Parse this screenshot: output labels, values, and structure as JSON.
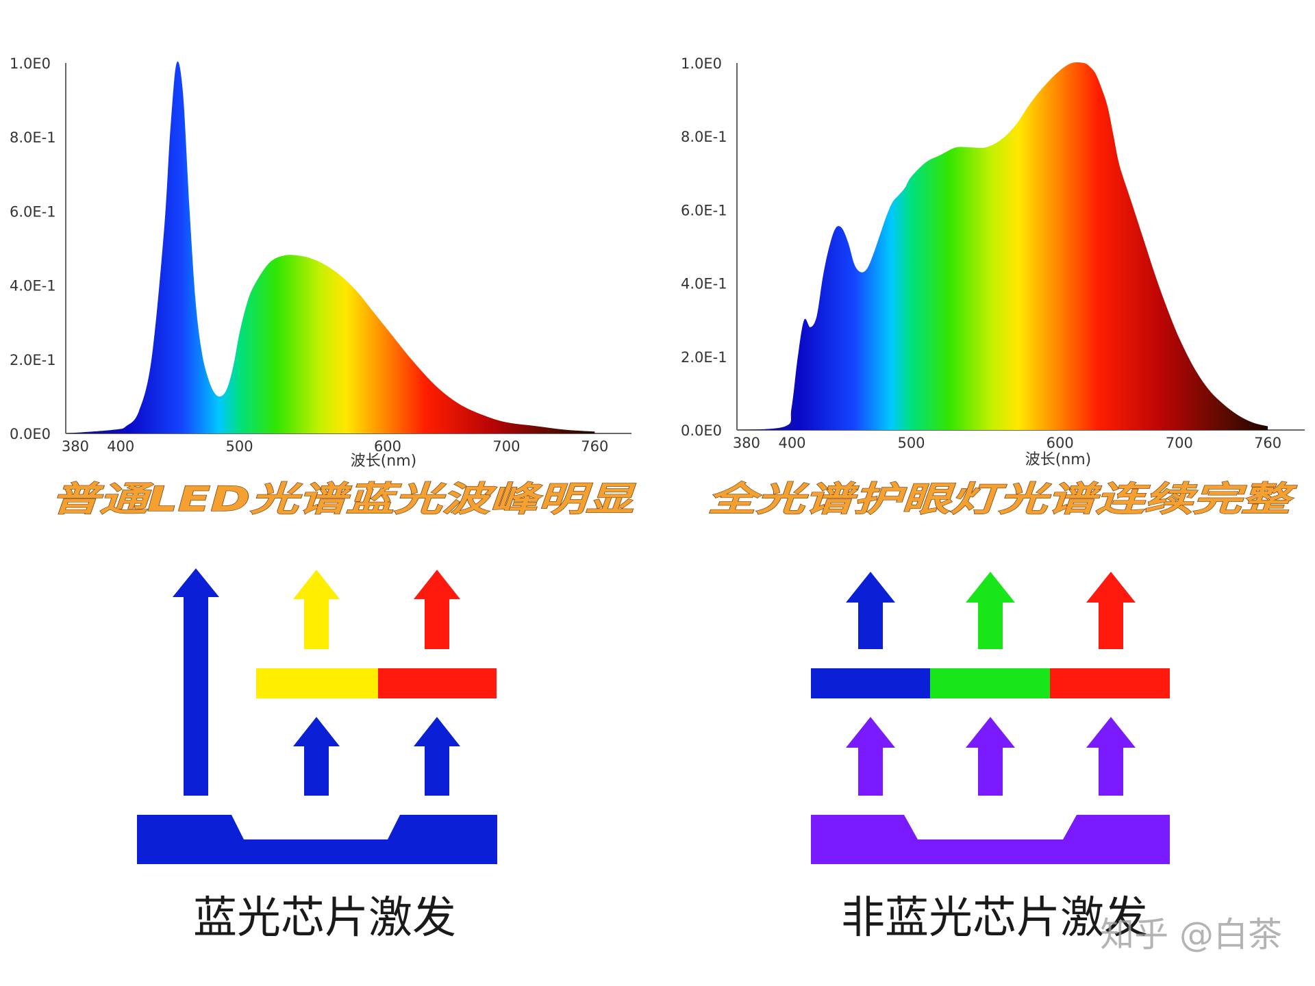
{
  "charts": {
    "left": {
      "title": "普通LED光谱蓝光波峰明显",
      "caption": "蓝光芯片激发"
    },
    "right": {
      "title": "全光谱护眼灯光谱连续完整",
      "caption": "非蓝光芯片激发"
    }
  },
  "watermark": "知乎 @白茶",
  "colors": {
    "blue": "#0a1fd6",
    "yellow": "#ffee00",
    "red": "#ff1a0d",
    "green": "#19e619",
    "violet": "#7a1aff",
    "title_fill": "#f4a132",
    "title_stroke": "#7a3d0c"
  },
  "diagrams": {
    "left": {
      "arrows": [
        "blue-long",
        "yellow",
        "red",
        "blue",
        "blue"
      ],
      "layer_colors": [
        "yellow",
        "red"
      ],
      "chip_color": "blue"
    },
    "right": {
      "arrows": [
        "blue",
        "green",
        "red",
        "violet",
        "violet",
        "violet"
      ],
      "layer_colors": [
        "blue",
        "green",
        "red"
      ],
      "chip_color": "violet"
    }
  },
  "chart_data": [
    {
      "type": "area",
      "title": "普通LED光谱蓝光波峰明显",
      "xlabel": "波长(nm)",
      "ylabel": "",
      "xlim": [
        380,
        760
      ],
      "ylim": [
        0,
        1.0
      ],
      "x_ticks": [
        380,
        400,
        500,
        600,
        700,
        760
      ],
      "x_tick_labels": [
        "380",
        "400",
        "500",
        "600",
        "700",
        "760"
      ],
      "y_ticks": [
        0,
        0.2,
        0.4,
        0.6,
        0.8,
        1.0
      ],
      "y_tick_labels": [
        "0.0E0",
        "2.0E-1",
        "4.0E-1",
        "6.0E-1",
        "8.0E-1",
        "1.0E0"
      ],
      "grid": false,
      "fill": "visible-spectrum gradient",
      "x": [
        380,
        400,
        410,
        420,
        430,
        440,
        445,
        450,
        455,
        460,
        465,
        470,
        475,
        480,
        485,
        490,
        495,
        500,
        505,
        510,
        520,
        530,
        540,
        550,
        560,
        570,
        580,
        590,
        600,
        620,
        640,
        660,
        680,
        700,
        720,
        740,
        760
      ],
      "values": [
        0.0,
        0.01,
        0.02,
        0.06,
        0.2,
        0.55,
        0.82,
        1.0,
        0.92,
        0.62,
        0.36,
        0.22,
        0.15,
        0.11,
        0.1,
        0.12,
        0.18,
        0.27,
        0.35,
        0.4,
        0.46,
        0.48,
        0.48,
        0.47,
        0.45,
        0.42,
        0.38,
        0.33,
        0.28,
        0.2,
        0.13,
        0.08,
        0.05,
        0.03,
        0.02,
        0.01,
        0.005
      ]
    },
    {
      "type": "area",
      "title": "全光谱护眼灯光谱连续完整",
      "xlabel": "波长(nm)",
      "ylabel": "",
      "xlim": [
        380,
        760
      ],
      "ylim": [
        0,
        1.0
      ],
      "x_ticks": [
        380,
        400,
        500,
        600,
        700,
        760
      ],
      "x_tick_labels": [
        "380",
        "400",
        "500",
        "600",
        "700",
        "760"
      ],
      "y_ticks": [
        0,
        0.2,
        0.4,
        0.6,
        0.8,
        1.0
      ],
      "y_tick_labels": [
        "0.0E0",
        "2.0E-1",
        "4.0E-1",
        "6.0E-1",
        "8.0E-1",
        "1.0E0"
      ],
      "grid": false,
      "fill": "visible-spectrum gradient",
      "x": [
        380,
        400,
        405,
        410,
        415,
        420,
        425,
        430,
        435,
        440,
        445,
        450,
        455,
        460,
        465,
        470,
        475,
        480,
        485,
        490,
        495,
        500,
        510,
        520,
        530,
        540,
        550,
        560,
        570,
        580,
        590,
        600,
        610,
        620,
        625,
        630,
        635,
        640,
        645,
        650,
        660,
        670,
        680,
        690,
        700,
        710,
        720,
        730,
        740,
        750,
        760
      ],
      "values": [
        0.0,
        0.01,
        0.06,
        0.2,
        0.3,
        0.28,
        0.31,
        0.42,
        0.5,
        0.55,
        0.55,
        0.51,
        0.45,
        0.43,
        0.44,
        0.48,
        0.53,
        0.58,
        0.62,
        0.64,
        0.66,
        0.69,
        0.73,
        0.75,
        0.77,
        0.77,
        0.77,
        0.79,
        0.83,
        0.89,
        0.94,
        0.98,
        1.0,
        1.0,
        0.99,
        0.97,
        0.93,
        0.88,
        0.8,
        0.72,
        0.62,
        0.52,
        0.42,
        0.33,
        0.25,
        0.17,
        0.11,
        0.07,
        0.04,
        0.02,
        0.01
      ]
    }
  ]
}
